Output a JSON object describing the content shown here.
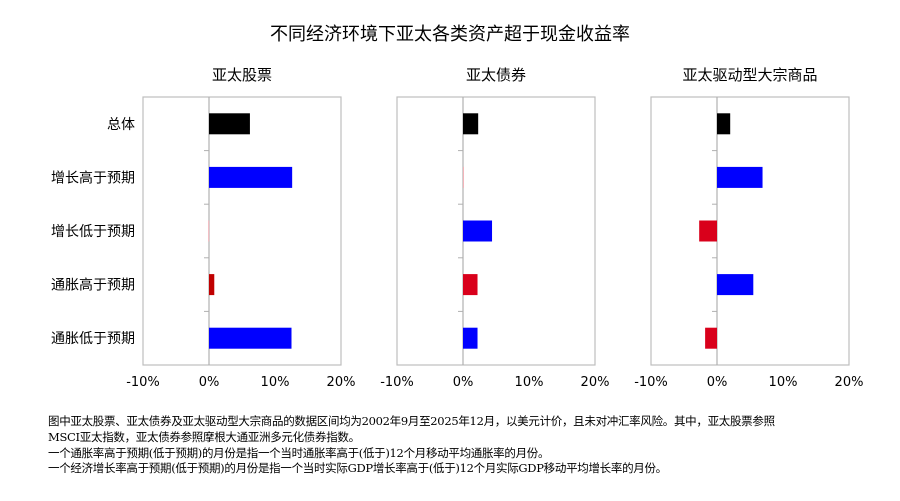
{
  "chart_data": {
    "type": "bar",
    "orientation": "horizontal",
    "title": "不同经济环境下亚太各类资产超于现金收益率",
    "categories": [
      "总体",
      "增长高于预期",
      "增长低于预期",
      "通胀高于预期",
      "通胀低于预期"
    ],
    "xlim": [
      -10,
      20
    ],
    "xticks": [
      "-10%",
      "0%",
      "10%",
      "20%"
    ],
    "grid": false,
    "panels": [
      {
        "title": "亚太股票",
        "values": [
          6.2,
          12.6,
          -0.1,
          0.8,
          12.5
        ],
        "colors": [
          "#000000",
          "#0000ff",
          "#f4a6ad",
          "#c00000",
          "#0000ff"
        ]
      },
      {
        "title": "亚太债券",
        "values": [
          2.3,
          0.1,
          4.4,
          2.2,
          2.2
        ],
        "colors": [
          "#000000",
          "#f4a6ad",
          "#0000ff",
          "#d9001b",
          "#0000ff"
        ]
      },
      {
        "title": "亚太驱动型大宗商品",
        "values": [
          2.0,
          6.9,
          -2.7,
          5.5,
          -1.8
        ],
        "colors": [
          "#000000",
          "#0000ff",
          "#d9001b",
          "#0000ff",
          "#d9001b"
        ]
      }
    ]
  },
  "footnotes": [
    "图中亚太股票、亚太债券及亚太驱动型大宗商品的数据区间均为2002年9月至2025年12月，以美元计价，且未对冲汇率风险。其中，亚太股票参照",
    "MSCI亚太指数，亚太债券参照摩根大通亚洲多元化债券指数。",
    "一个通胀率高于预期(低于预期)的月份是指一个当时通胀率高于(低于)12个月移动平均通胀率的月份。",
    "一个经济增长率高于预期(低于预期)的月份是指一个当时实际GDP增长率高于(低于)12个月实际GDP移动平均增长率的月份。"
  ]
}
